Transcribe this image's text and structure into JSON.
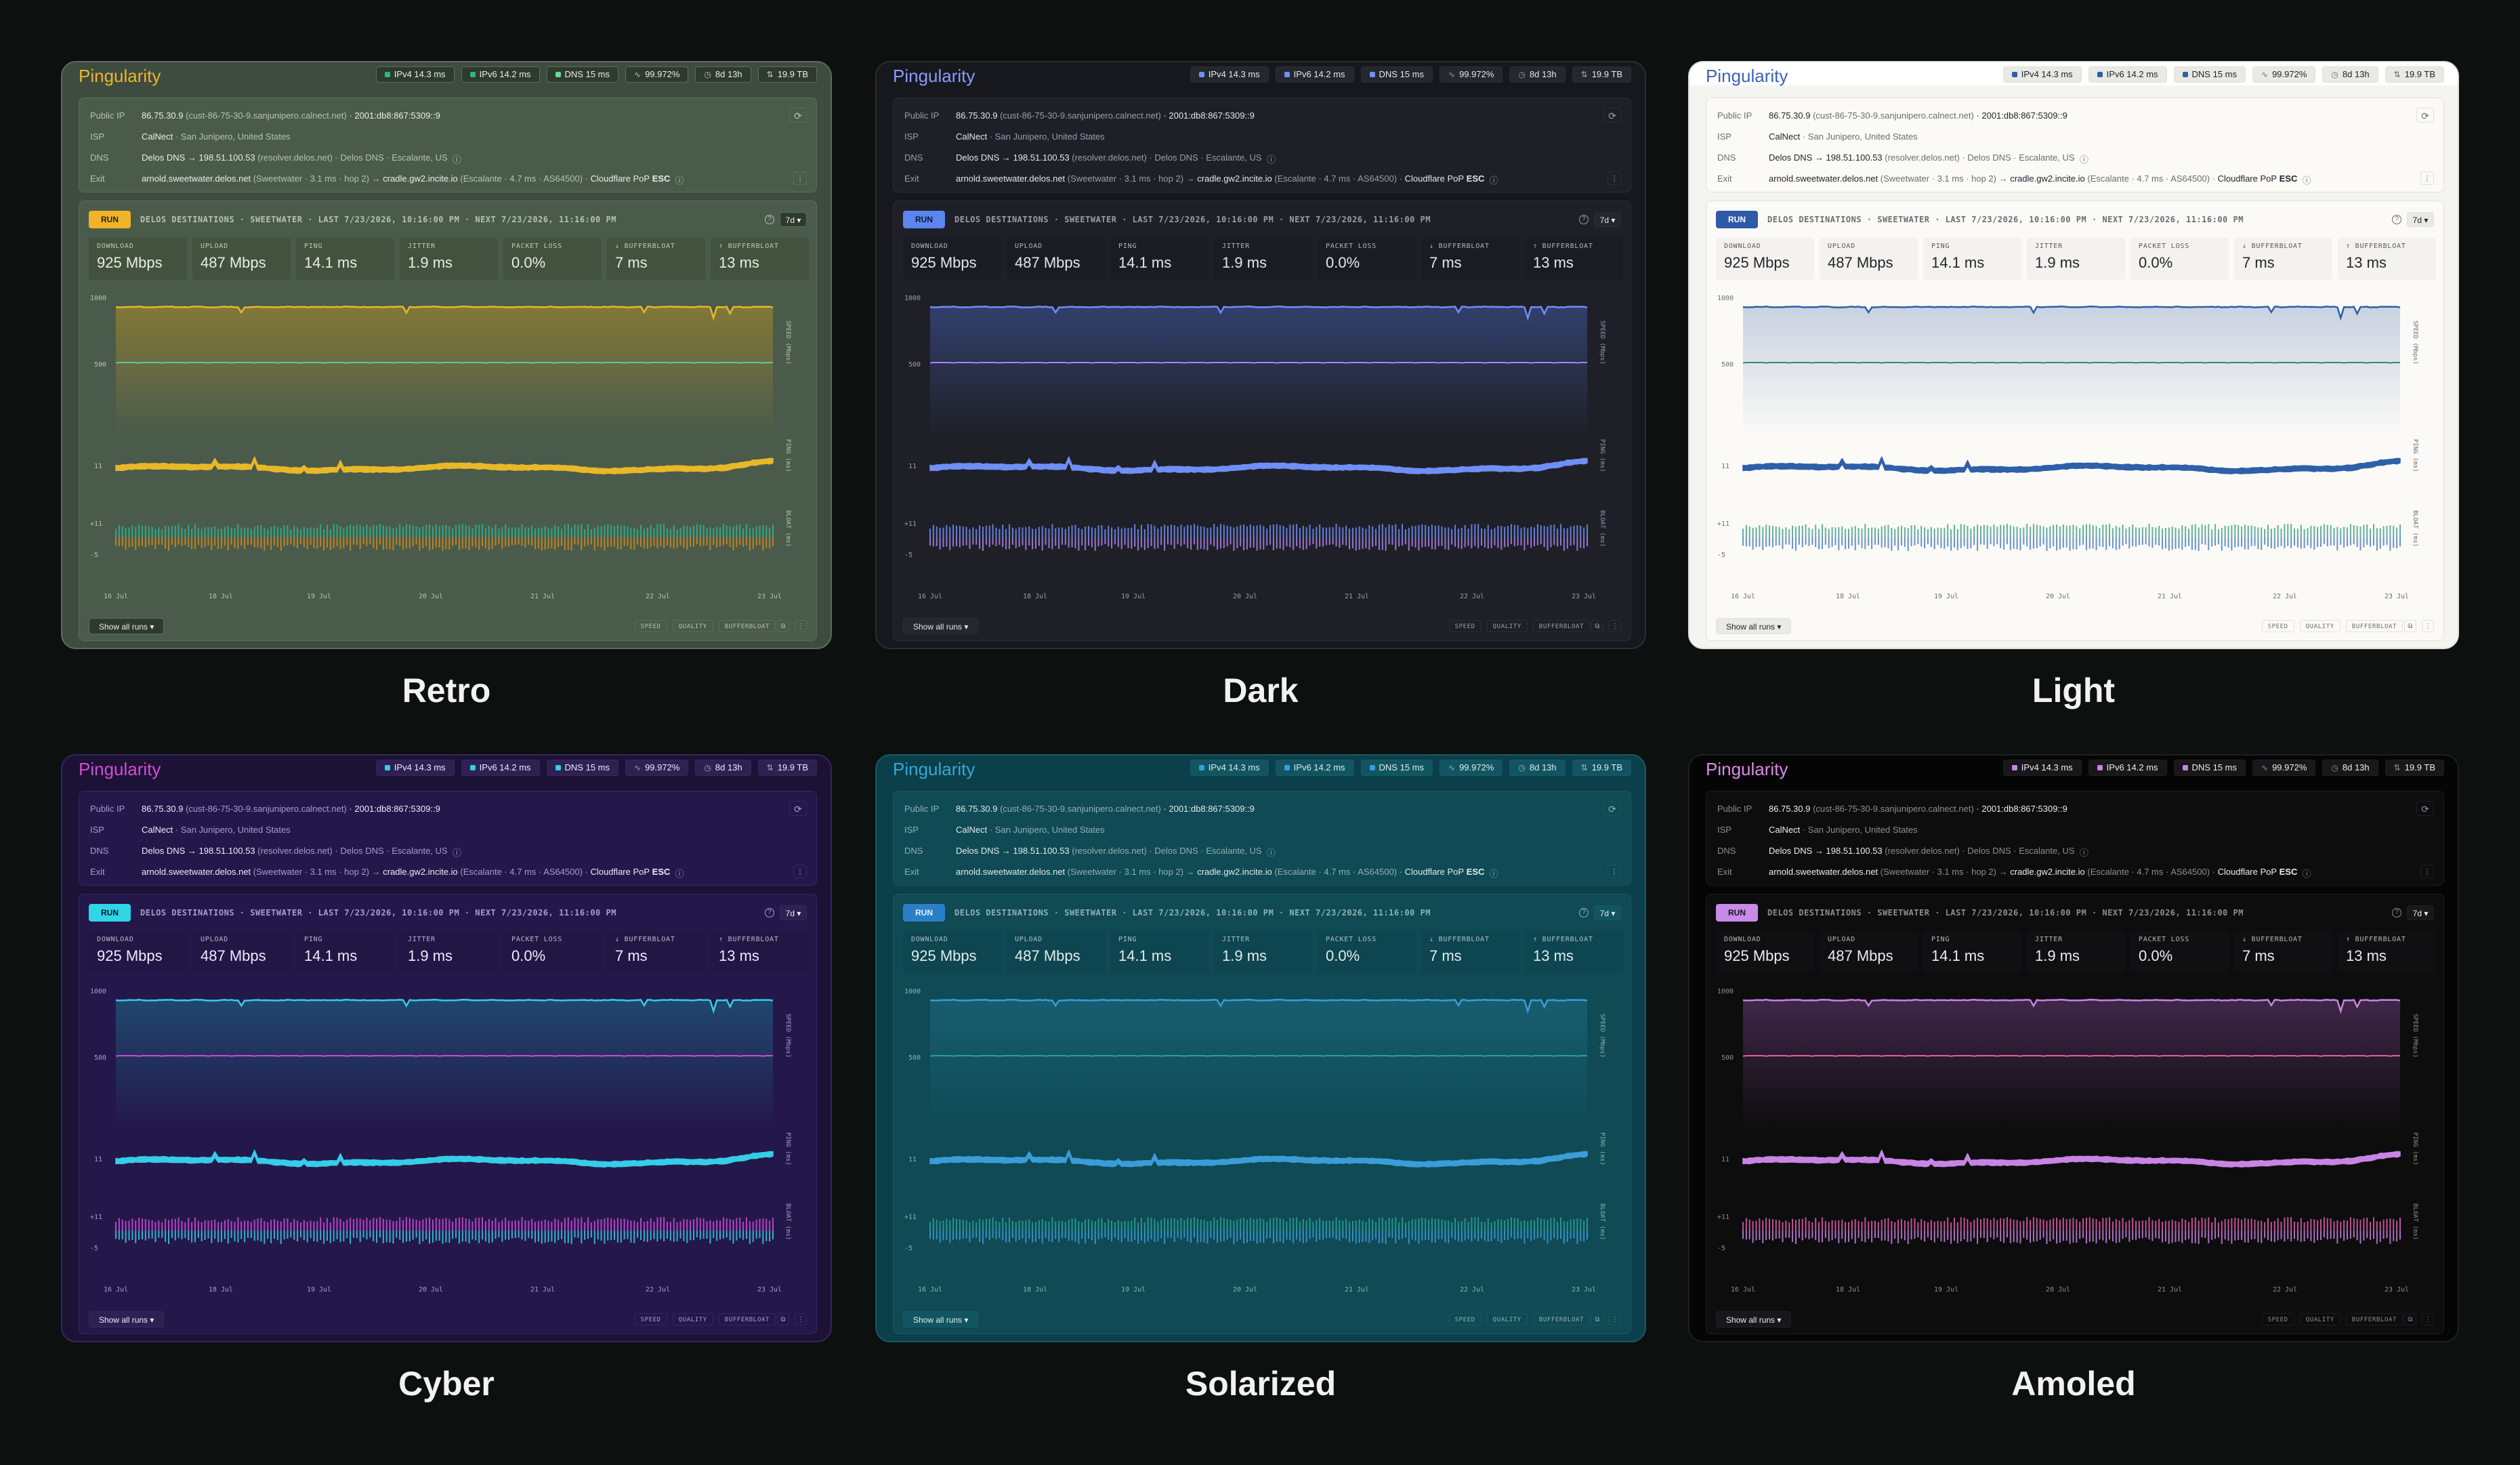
{
  "app": {
    "logo": "Pingularity",
    "chips": [
      {
        "label": "IPv4 14.3 ms",
        "icon": "square-dot"
      },
      {
        "label": "IPv6 14.2 ms",
        "icon": "square-dot"
      },
      {
        "label": "DNS 15 ms",
        "icon": "square-dot"
      },
      {
        "label": "99.972%",
        "icon": "pulse-icon"
      },
      {
        "label": "8d 13h",
        "icon": "clock-icon"
      },
      {
        "label": "19.9 TB",
        "icon": "transfer-icon"
      }
    ],
    "info": {
      "public_ip_label": "Public IP",
      "public_ip_value": "86.75.30.9",
      "public_ip_host": "(cust-86-75-30-9.sanjunipero.calnect.net)",
      "public_ip_v6": "· 2001:db8:867:5309::9",
      "isp_label": "ISP",
      "isp_value": "CalNect",
      "isp_location": "· San Junipero, United States",
      "dns_label": "DNS",
      "dns_value": "Delos DNS → 198.51.100.53",
      "dns_detail": "(resolver.delos.net) · Delos DNS · Escalante, US",
      "exit_label": "Exit",
      "exit_value": "arnold.sweetwater.delos.net",
      "exit_detail": "(Sweetwater · 3.1 ms · hop 2) →",
      "exit_value2": "cradle.gw2.incite.io",
      "exit_detail2": "(Escalante · 4.7 ms · AS64500) ·",
      "exit_pop": "Cloudflare PoP",
      "exit_pop_code": "ESC"
    },
    "run": {
      "button": "RUN",
      "title": "DELOS DESTINATIONS · SWEETWATER · LAST 7/23/2026, 10:16:00 PM · NEXT 7/23/2026, 11:16:00 PM",
      "range": "7d ▾",
      "help": "?"
    },
    "metrics": [
      {
        "label": "DOWNLOAD",
        "value": "925 Mbps"
      },
      {
        "label": "UPLOAD",
        "value": "487 Mbps"
      },
      {
        "label": "PING",
        "value": "14.1 ms"
      },
      {
        "label": "JITTER",
        "value": "1.9 ms"
      },
      {
        "label": "PACKET LOSS",
        "value": "0.0%"
      },
      {
        "label": "↓ BUFFERBLOAT",
        "value": "7 ms"
      },
      {
        "label": "↑ BUFFERBLOAT",
        "value": "13 ms"
      }
    ],
    "chart_axes": {
      "speed_ticks": [
        "1000",
        "500"
      ],
      "ping_tick": "11",
      "bloat_ticks": [
        "+11",
        "-5"
      ],
      "right_labels": [
        "SPEED (Mbps)",
        "PING (ms)",
        "BLOAT (ms)"
      ],
      "x_ticks": [
        "16 Jul",
        "18 Jul",
        "19 Jul",
        "20 Jul",
        "21 Jul",
        "22 Jul",
        "23 Jul"
      ]
    },
    "footer": {
      "show_all": "Show all runs ▾",
      "legend": [
        "SPEED",
        "QUALITY",
        "BUFFERBLOAT"
      ]
    }
  },
  "themes": [
    {
      "name": "Retro",
      "bg": "#3d4c3f",
      "topbar": "#3d4c3f",
      "panel": "#4a5b4b",
      "panel_border": "#5b6c5b",
      "metric_bg": "#42523f",
      "chip_bg": "#2e3a2f",
      "text": "#eaeee4",
      "muted": "#b7c2b1",
      "logo": "#f0b429",
      "accent": "#f0b429",
      "accent_text": "#2a2000",
      "line1": "#e8b829",
      "line2": "#5fc9a2",
      "bloat1": "#2fb58c",
      "bloat2": "#d2891f",
      "fill": "#b08f28",
      "grid": "#5b6c5b",
      "dot1": "#2fb58c",
      "dot2": "#2fb58c",
      "dot3": "#5fe08a"
    },
    {
      "name": "Dark",
      "bg": "#17181d",
      "topbar": "#17181d",
      "panel": "#1f2027",
      "panel_border": "#2b2d35",
      "metric_bg": "#1b1c22",
      "chip_bg": "#25272f",
      "text": "#e6e7ec",
      "muted": "#9a9daa",
      "logo": "#8a9cff",
      "accent": "#5b86f0",
      "accent_text": "#0d1530",
      "line1": "#6f8ff7",
      "line2": "#a986f0",
      "bloat1": "#6f8ff7",
      "bloat2": "#a986f0",
      "fill": "#4259a6",
      "grid": "#2b2d35",
      "dot1": "#6f8ff7",
      "dot2": "#6f8ff7",
      "dot3": "#6f8ff7"
    },
    {
      "name": "Light",
      "bg": "#f4f4f1",
      "topbar": "#ffffff",
      "panel": "#fbfaf7",
      "panel_border": "#e1e1dc",
      "metric_bg": "#f3f2ee",
      "chip_bg": "#e9e9e5",
      "text": "#23252b",
      "muted": "#6a6d73",
      "logo": "#3d63b5",
      "accent": "#2e5aa8",
      "accent_text": "#ffffff",
      "line1": "#2e5fa8",
      "line2": "#2f8a78",
      "bloat1": "#4aa38c",
      "bloat2": "#4e7fc3",
      "fill": "#9fb1cf",
      "grid": "#e1e1dc",
      "dot1": "#2e5fa8",
      "dot2": "#2e5fa8",
      "dot3": "#2e5fa8"
    },
    {
      "name": "Cyber",
      "bg": "#1c1235",
      "topbar": "#1c1235",
      "panel": "#24184a",
      "panel_border": "#35275f",
      "metric_bg": "#211644",
      "chip_bg": "#2e2152",
      "text": "#efeaff",
      "muted": "#a99bd1",
      "logo": "#d44bd8",
      "accent": "#2fd6e8",
      "accent_text": "#071c22",
      "line1": "#35cde8",
      "line2": "#d14ad8",
      "bloat1": "#d14ad8",
      "bloat2": "#35cde8",
      "fill": "#1d6d8c",
      "grid": "#35275f",
      "dot1": "#35cde8",
      "dot2": "#35cde8",
      "dot3": "#35cde8"
    },
    {
      "name": "Solarized",
      "bg": "#0b3f49",
      "topbar": "#0b3f49",
      "panel": "#0f4a55",
      "panel_border": "#1a5863",
      "metric_bg": "#0d4550",
      "chip_bg": "#125562",
      "text": "#e2ecea",
      "muted": "#8fb2b1",
      "logo": "#38a6d9",
      "accent": "#2b7fc7",
      "accent_text": "#e6f2ff",
      "line1": "#3a9dd8",
      "line2": "#2aa198",
      "bloat1": "#2aa198",
      "bloat2": "#3a9dd8",
      "fill": "#1d6d86",
      "grid": "#1a5863",
      "dot1": "#3a9dd8",
      "dot2": "#3a9dd8",
      "dot3": "#3a9dd8"
    },
    {
      "name": "Amoled",
      "bg": "#050505",
      "topbar": "#050505",
      "panel": "#0d0d0e",
      "panel_border": "#1f1f22",
      "metric_bg": "#101012",
      "chip_bg": "#18181b",
      "text": "#ededf0",
      "muted": "#8d8d95",
      "logo": "#d98be8",
      "accent": "#c78be8",
      "accent_text": "#1c0f22",
      "line1": "#c884e4",
      "line2": "#e05fb0",
      "bloat1": "#e05fb0",
      "bloat2": "#c884e4",
      "fill": "#6a3c7a",
      "grid": "#1f1f22",
      "dot1": "#c884e4",
      "dot2": "#c884e4",
      "dot3": "#c884e4"
    }
  ]
}
